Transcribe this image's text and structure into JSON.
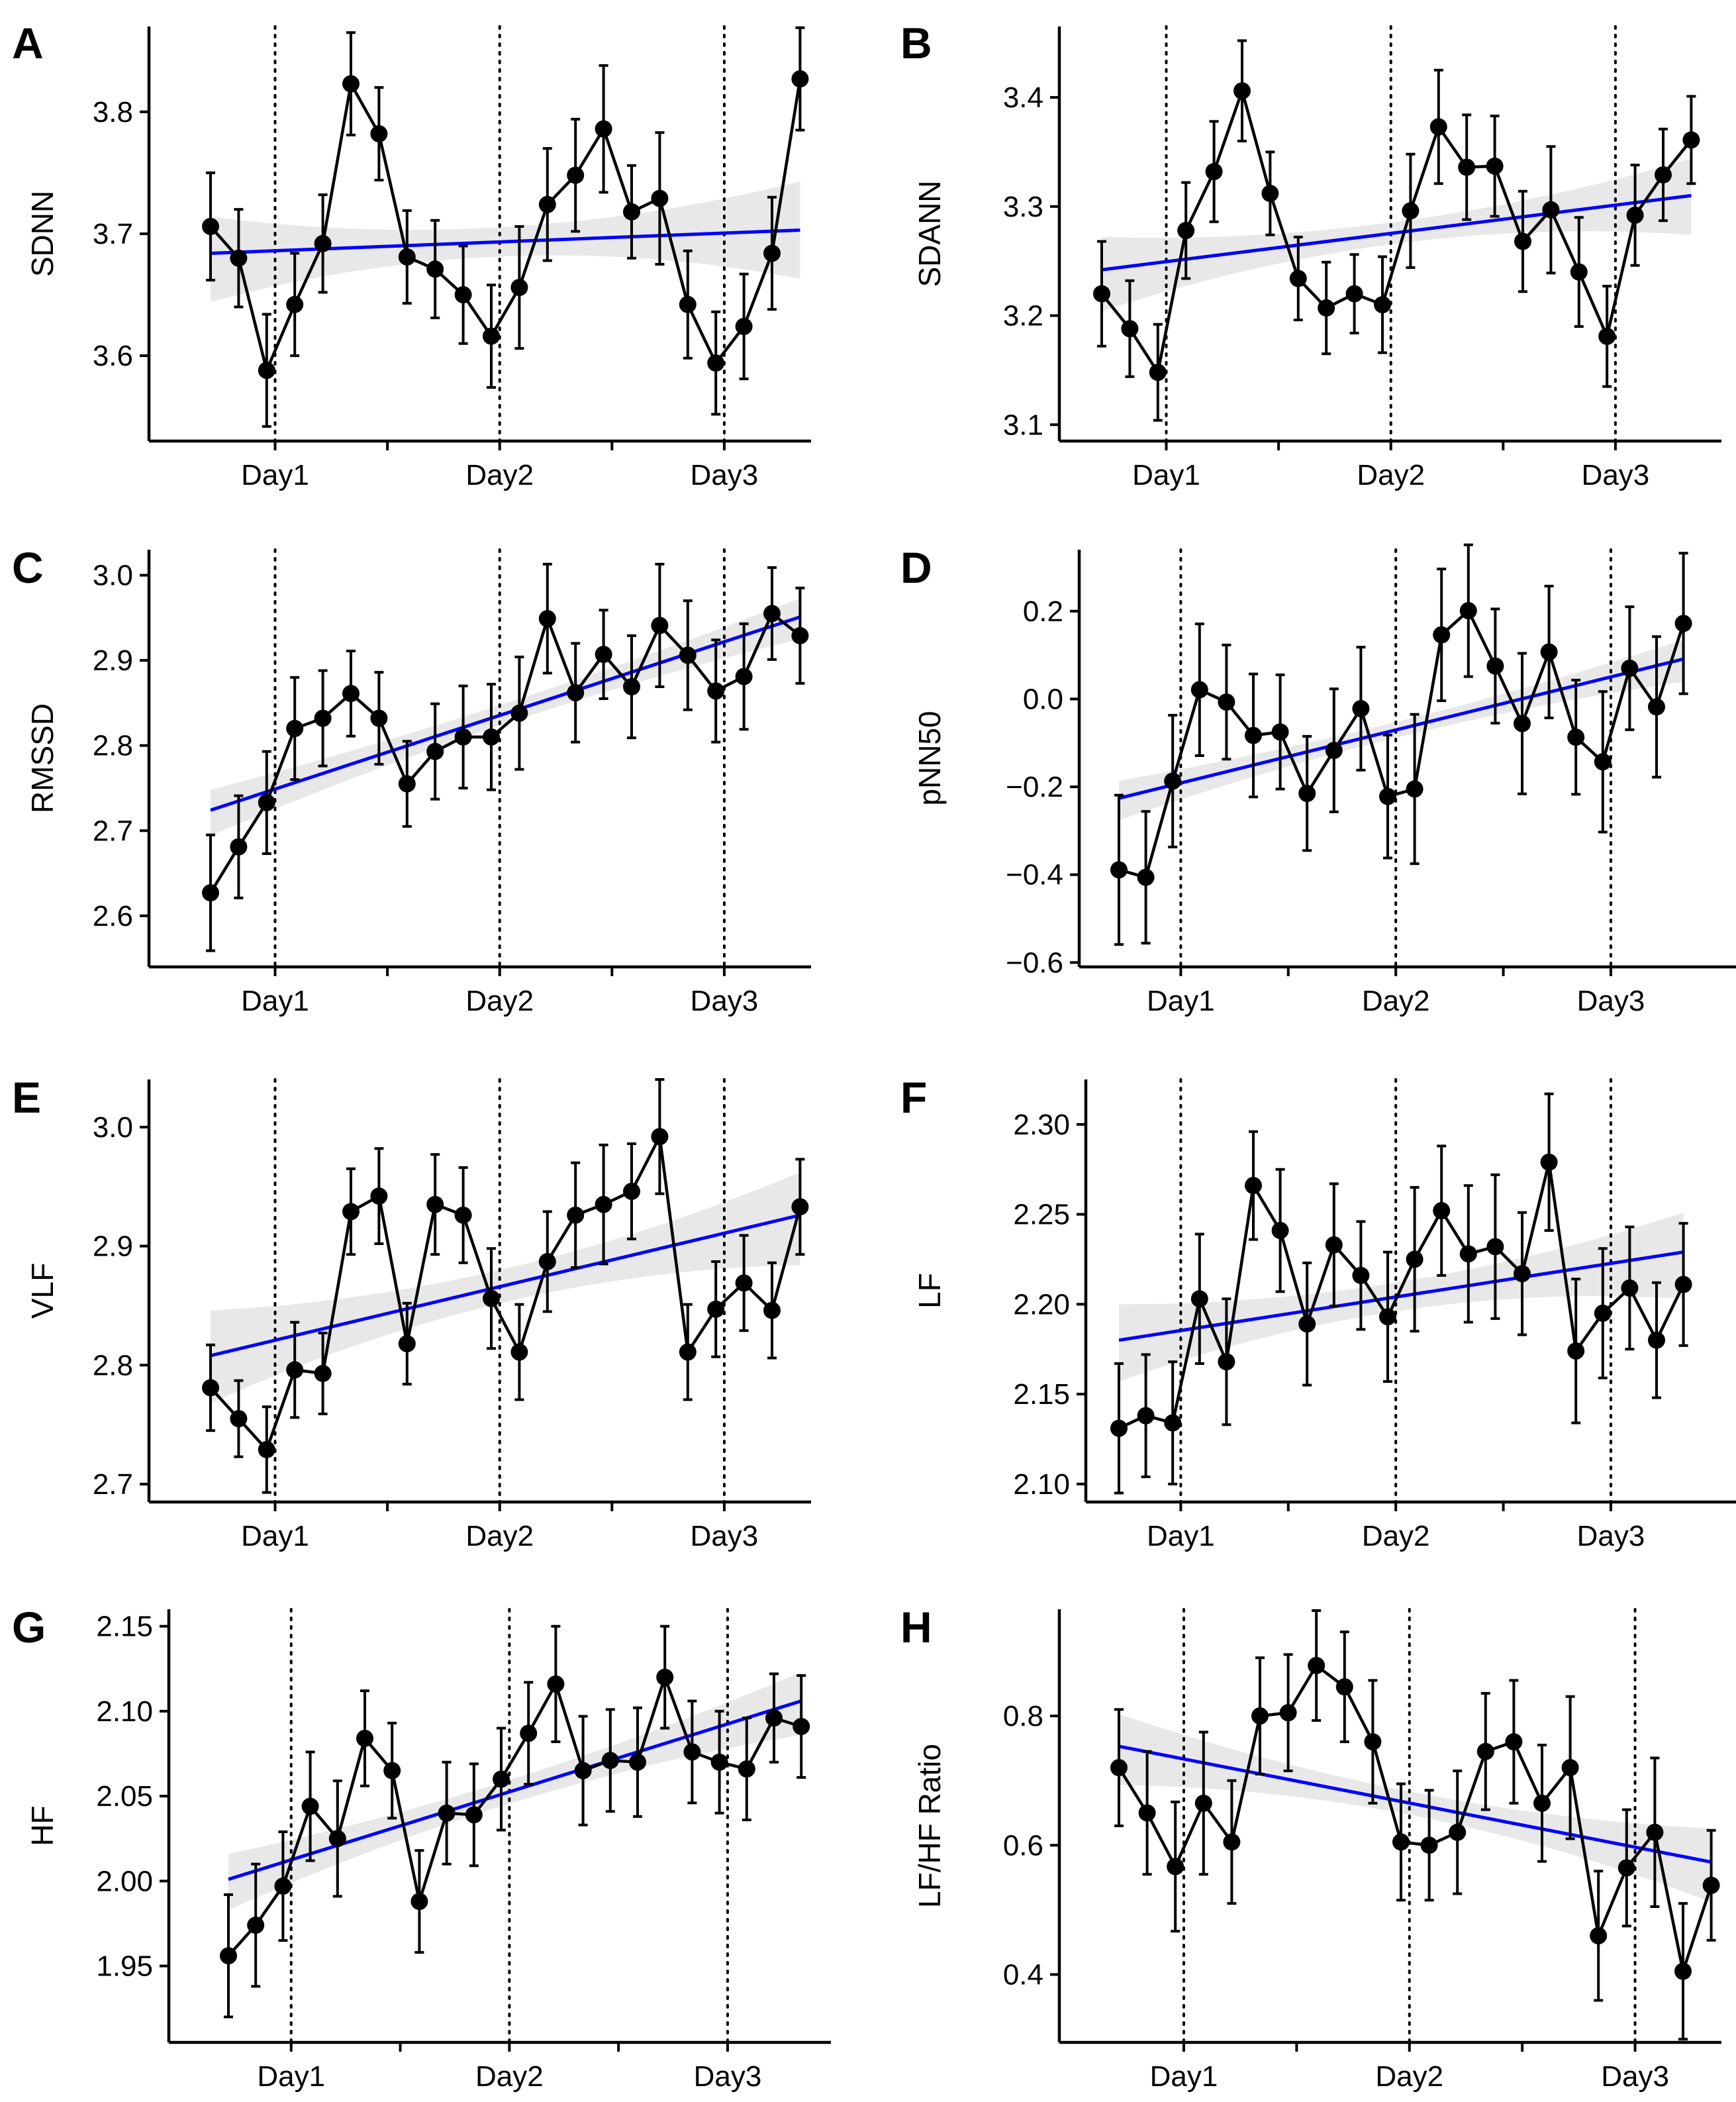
{
  "colors": {
    "series": "#000000",
    "trend": "#0000ff",
    "band": "#d9d9d9",
    "axis": "#000000"
  },
  "chart_data": [
    {
      "id": "A",
      "panel_label": "A",
      "type": "line",
      "ylabel": "SDNN",
      "xlabel": "",
      "day_labels": [
        "Day1",
        "Day2",
        "Day3"
      ],
      "x": [
        1,
        2,
        3,
        4,
        5,
        6,
        7,
        8,
        9,
        10,
        11,
        12,
        13,
        14,
        15,
        16,
        17,
        18,
        19,
        20,
        21,
        22
      ],
      "day_positions": [
        3.3,
        11.3,
        19.3
      ],
      "ylim": [
        3.53,
        3.87
      ],
      "yticks": [
        3.6,
        3.7,
        3.8
      ],
      "tick_format": "1dp",
      "values": [
        3.706,
        3.68,
        3.588,
        3.642,
        3.692,
        3.823,
        3.782,
        3.681,
        3.671,
        3.65,
        3.616,
        3.656,
        3.724,
        3.748,
        3.786,
        3.718,
        3.729,
        3.642,
        3.594,
        3.624,
        3.684,
        3.827
      ],
      "errors": [
        0.044,
        0.04,
        0.046,
        0.042,
        0.04,
        0.042,
        0.038,
        0.038,
        0.04,
        0.04,
        0.042,
        0.05,
        0.046,
        0.046,
        0.052,
        0.038,
        0.054,
        0.044,
        0.042,
        0.043,
        0.046,
        0.042
      ],
      "trend": [
        3.684,
        3.703
      ],
      "band": [
        [
          0.04,
          0.03
        ],
        [
          0.012,
          0.012
        ],
        [
          0.04,
          0.04
        ]
      ]
    },
    {
      "id": "B",
      "panel_label": "B",
      "type": "line",
      "ylabel": "SDANN",
      "xlabel": "",
      "day_labels": [
        "Day1",
        "Day2",
        "Day3"
      ],
      "x": [
        1,
        2,
        3,
        4,
        5,
        6,
        7,
        8,
        9,
        10,
        11,
        12,
        13,
        14,
        15,
        16,
        17,
        18,
        19,
        20,
        21,
        22
      ],
      "day_positions": [
        3.3,
        11.3,
        19.3
      ],
      "ylim": [
        3.085,
        3.465
      ],
      "yticks": [
        3.1,
        3.2,
        3.3,
        3.4
      ],
      "tick_format": "1dp",
      "values": [
        3.22,
        3.188,
        3.148,
        3.278,
        3.332,
        3.406,
        3.312,
        3.234,
        3.207,
        3.22,
        3.21,
        3.296,
        3.373,
        3.336,
        3.337,
        3.268,
        3.297,
        3.24,
        3.181,
        3.292,
        3.329,
        3.361
      ],
      "errors": [
        0.048,
        0.044,
        0.044,
        0.044,
        0.046,
        0.046,
        0.038,
        0.038,
        0.042,
        0.036,
        0.044,
        0.052,
        0.052,
        0.048,
        0.046,
        0.046,
        0.058,
        0.05,
        0.046,
        0.046,
        0.042,
        0.04
      ],
      "trend": [
        3.242,
        3.31
      ],
      "band": [
        [
          0.038,
          0.03
        ],
        [
          0.01,
          0.01
        ],
        [
          0.036,
          0.034
        ]
      ]
    },
    {
      "id": "C",
      "panel_label": "C",
      "type": "line",
      "ylabel": "RMSSD",
      "xlabel": "",
      "day_labels": [
        "Day1",
        "Day2",
        "Day3"
      ],
      "x": [
        1,
        2,
        3,
        4,
        5,
        6,
        7,
        8,
        9,
        10,
        11,
        12,
        13,
        14,
        15,
        16,
        17,
        18,
        19,
        20,
        21,
        22
      ],
      "day_positions": [
        3.3,
        11.3,
        19.3
      ],
      "ylim": [
        2.54,
        3.03
      ],
      "yticks": [
        2.6,
        2.7,
        2.8,
        2.9,
        3.0
      ],
      "tick_format": "1dp",
      "values": [
        2.627,
        2.681,
        2.733,
        2.82,
        2.832,
        2.861,
        2.832,
        2.755,
        2.793,
        2.81,
        2.81,
        2.838,
        2.949,
        2.862,
        2.907,
        2.869,
        2.941,
        2.906,
        2.864,
        2.881,
        2.955,
        2.929
      ],
      "errors": [
        0.068,
        0.06,
        0.06,
        0.06,
        0.056,
        0.05,
        0.054,
        0.05,
        0.056,
        0.06,
        0.062,
        0.066,
        0.064,
        0.058,
        0.052,
        0.06,
        0.072,
        0.064,
        0.06,
        0.062,
        0.054,
        0.056
      ],
      "trend": [
        2.724,
        2.951
      ],
      "band": [
        [
          0.03,
          0.024
        ],
        [
          0.012,
          0.012
        ],
        [
          0.026,
          0.022
        ]
      ]
    },
    {
      "id": "D",
      "panel_label": "D",
      "type": "line",
      "ylabel": "pNN50",
      "xlabel": "",
      "day_labels": [
        "Day1",
        "Day2",
        "Day3"
      ],
      "x": [
        1,
        2,
        3,
        4,
        5,
        6,
        7,
        8,
        9,
        10,
        11,
        12,
        13,
        14,
        15,
        16,
        17,
        18,
        19,
        20,
        21,
        22
      ],
      "day_positions": [
        3.3,
        11.3,
        19.3
      ],
      "ylim": [
        -0.61,
        0.34
      ],
      "yticks": [
        -0.6,
        -0.4,
        -0.2,
        0.0,
        0.2
      ],
      "tick_format": "unicode_minus_1dp",
      "values": [
        -0.389,
        -0.406,
        -0.187,
        0.021,
        -0.007,
        -0.083,
        -0.075,
        -0.215,
        -0.117,
        -0.022,
        -0.222,
        -0.205,
        0.146,
        0.201,
        0.075,
        -0.056,
        0.107,
        -0.087,
        -0.143,
        0.07,
        -0.018,
        0.172
      ],
      "errors": [
        0.17,
        0.15,
        0.15,
        0.15,
        0.13,
        0.14,
        0.13,
        0.13,
        0.14,
        0.14,
        0.14,
        0.17,
        0.15,
        0.15,
        0.13,
        0.16,
        0.15,
        0.13,
        0.16,
        0.14,
        0.16,
        0.16
      ],
      "trend": [
        -0.226,
        0.091
      ],
      "band": [
        [
          0.05,
          0.04
        ],
        [
          0.018,
          0.018
        ],
        [
          0.052,
          0.044
        ]
      ]
    },
    {
      "id": "E",
      "panel_label": "E",
      "type": "line",
      "ylabel": "VLF",
      "xlabel": "",
      "day_labels": [
        "Day1",
        "Day2",
        "Day3"
      ],
      "x": [
        1,
        2,
        3,
        4,
        5,
        6,
        7,
        8,
        9,
        10,
        11,
        12,
        13,
        14,
        15,
        16,
        17,
        18,
        19,
        20,
        21,
        22
      ],
      "day_positions": [
        3.3,
        11.3,
        19.3
      ],
      "ylim": [
        2.685,
        3.04
      ],
      "yticks": [
        2.7,
        2.8,
        2.9,
        3.0
      ],
      "tick_format": "1dp",
      "values": [
        2.781,
        2.755,
        2.729,
        2.796,
        2.793,
        2.929,
        2.942,
        2.818,
        2.935,
        2.926,
        2.856,
        2.811,
        2.887,
        2.926,
        2.935,
        2.946,
        2.992,
        2.811,
        2.847,
        2.869,
        2.846,
        2.933
      ],
      "errors": [
        0.036,
        0.032,
        0.036,
        0.04,
        0.034,
        0.036,
        0.04,
        0.034,
        0.042,
        0.04,
        0.042,
        0.04,
        0.042,
        0.044,
        0.05,
        0.04,
        0.048,
        0.04,
        0.04,
        0.04,
        0.04,
        0.04
      ],
      "trend": [
        2.808,
        2.926
      ],
      "band": [
        [
          0.04,
          0.038
        ],
        [
          0.014,
          0.014
        ],
        [
          0.042,
          0.036
        ]
      ]
    },
    {
      "id": "F",
      "panel_label": "F",
      "type": "line",
      "ylabel": "LF",
      "xlabel": "",
      "day_labels": [
        "Day1",
        "Day2",
        "Day3"
      ],
      "x": [
        1,
        2,
        3,
        4,
        5,
        6,
        7,
        8,
        9,
        10,
        11,
        12,
        13,
        14,
        15,
        16,
        17,
        18,
        19,
        20,
        21,
        22
      ],
      "day_positions": [
        3.3,
        11.3,
        19.3
      ],
      "ylim": [
        2.09,
        2.325
      ],
      "yticks": [
        2.1,
        2.15,
        2.2,
        2.25,
        2.3
      ],
      "tick_format": "2dp",
      "values": [
        2.131,
        2.138,
        2.134,
        2.203,
        2.168,
        2.266,
        2.241,
        2.189,
        2.233,
        2.216,
        2.193,
        2.225,
        2.252,
        2.228,
        2.232,
        2.217,
        2.279,
        2.174,
        2.195,
        2.209,
        2.18,
        2.211
      ],
      "errors": [
        0.036,
        0.034,
        0.034,
        0.036,
        0.035,
        0.03,
        0.034,
        0.034,
        0.034,
        0.03,
        0.036,
        0.04,
        0.036,
        0.038,
        0.04,
        0.034,
        0.038,
        0.04,
        0.036,
        0.034,
        0.032,
        0.034
      ],
      "trend": [
        2.18,
        2.229
      ],
      "band": [
        [
          0.023,
          0.02
        ],
        [
          0.008,
          0.008
        ],
        [
          0.026,
          0.022
        ]
      ]
    },
    {
      "id": "G",
      "panel_label": "G",
      "type": "line",
      "ylabel": "HF",
      "xlabel": "",
      "day_labels": [
        "Day1",
        "Day2",
        "Day3"
      ],
      "x": [
        1,
        2,
        3,
        4,
        5,
        6,
        7,
        8,
        9,
        10,
        11,
        12,
        13,
        14,
        15,
        16,
        17,
        18,
        19,
        20,
        21,
        22
      ],
      "day_positions": [
        3.3,
        11.3,
        19.3
      ],
      "ylim": [
        1.905,
        2.16
      ],
      "yticks": [
        1.95,
        2.0,
        2.05,
        2.1,
        2.15
      ],
      "tick_format": "2dp",
      "values": [
        1.956,
        1.974,
        1.997,
        2.044,
        2.025,
        2.084,
        2.065,
        1.988,
        2.04,
        2.039,
        2.06,
        2.087,
        2.116,
        2.065,
        2.071,
        2.07,
        2.12,
        2.076,
        2.07,
        2.066,
        2.096,
        2.091
      ],
      "errors": [
        0.036,
        0.036,
        0.032,
        0.032,
        0.034,
        0.028,
        0.028,
        0.03,
        0.03,
        0.03,
        0.03,
        0.03,
        0.034,
        0.032,
        0.03,
        0.032,
        0.03,
        0.03,
        0.03,
        0.03,
        0.026,
        0.03
      ],
      "trend": [
        2.001,
        2.106
      ],
      "band": [
        [
          0.018,
          0.015
        ],
        [
          0.007,
          0.007
        ],
        [
          0.02,
          0.017
        ]
      ]
    },
    {
      "id": "H",
      "panel_label": "H",
      "type": "line",
      "ylabel": "LF/HF Ratio",
      "xlabel": "",
      "day_labels": [
        "Day1",
        "Day2",
        "Day3"
      ],
      "x": [
        1,
        2,
        3,
        4,
        5,
        6,
        7,
        8,
        9,
        10,
        11,
        12,
        13,
        14,
        15,
        16,
        17,
        18,
        19,
        20,
        21,
        22
      ],
      "day_positions": [
        3.3,
        11.3,
        19.3
      ],
      "ylim": [
        0.295,
        0.965
      ],
      "yticks": [
        0.4,
        0.6,
        0.8
      ],
      "tick_format": "1dp",
      "values": [
        0.72,
        0.65,
        0.567,
        0.665,
        0.605,
        0.8,
        0.805,
        0.878,
        0.845,
        0.76,
        0.605,
        0.6,
        0.62,
        0.745,
        0.76,
        0.665,
        0.72,
        0.46,
        0.565,
        0.62,
        0.405,
        0.538
      ],
      "errors": [
        0.09,
        0.095,
        0.1,
        0.11,
        0.095,
        0.09,
        0.09,
        0.085,
        0.085,
        0.095,
        0.09,
        0.085,
        0.095,
        0.09,
        0.095,
        0.09,
        0.11,
        0.1,
        0.09,
        0.115,
        0.105,
        0.085
      ],
      "trend": [
        0.753,
        0.574
      ],
      "band": [
        [
          0.06,
          0.05
        ],
        [
          0.018,
          0.018
        ],
        [
          0.062,
          0.052
        ]
      ]
    }
  ]
}
